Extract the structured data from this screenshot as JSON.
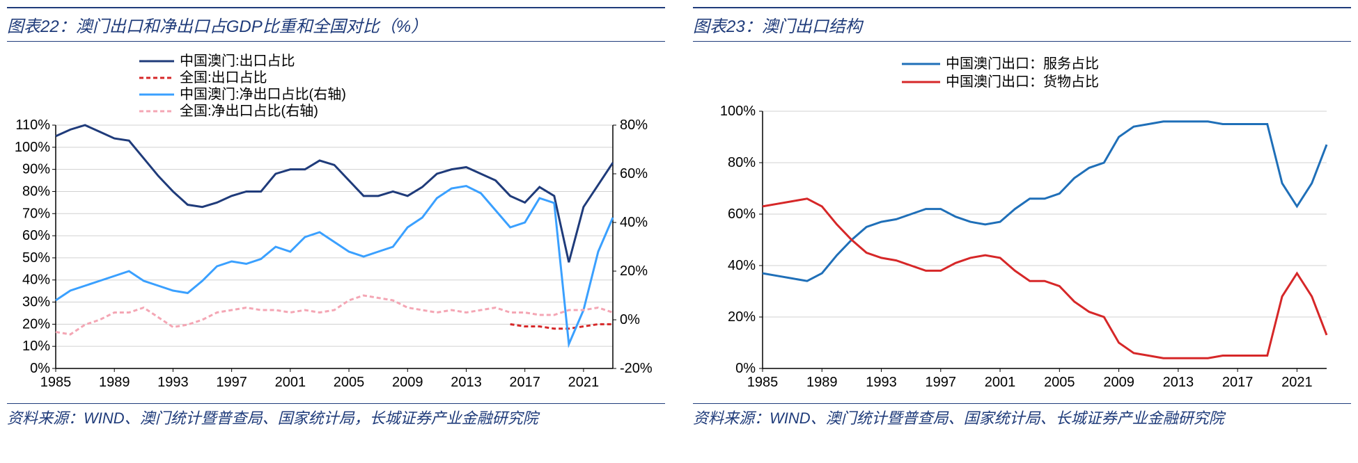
{
  "left": {
    "title": "图表22：澳门出口和净出口占GDP比重和全国对比（%）",
    "source": "资料来源：WIND、澳门统计暨普查局、国家统计局，长城证券产业金融研究院",
    "chart": {
      "type": "line-dual-axis",
      "background_color": "#ffffff",
      "grid_color": "#d0d0d0",
      "label_fontsize": 20,
      "x": {
        "ticks": [
          1985,
          1989,
          1993,
          1997,
          2001,
          2005,
          2009,
          2013,
          2017,
          2021
        ],
        "min": 1985,
        "max": 2023
      },
      "yLeft": {
        "min": 0,
        "max": 110,
        "step": 10,
        "suffix": "%"
      },
      "yRight": {
        "min": -20,
        "max": 80,
        "step": 20,
        "suffix": "%"
      },
      "legend": [
        {
          "label": "中国澳门:出口占比",
          "color": "#1f3b7a",
          "dash": "",
          "width": 3,
          "axis": "left",
          "key": "macao_export"
        },
        {
          "label": "全国:出口占比",
          "color": "#d62728",
          "dash": "6,4",
          "width": 3,
          "axis": "left",
          "key": "china_export"
        },
        {
          "label": "中国澳门:净出口占比(右轴)",
          "color": "#3aa0ff",
          "dash": "",
          "width": 3,
          "axis": "right",
          "key": "macao_net"
        },
        {
          "label": "全国:净出口占比(右轴)",
          "color": "#f4a6b4",
          "dash": "6,4",
          "width": 3,
          "axis": "right",
          "key": "china_net"
        }
      ],
      "series": {
        "years": [
          1985,
          1986,
          1987,
          1988,
          1989,
          1990,
          1991,
          1992,
          1993,
          1994,
          1995,
          1996,
          1997,
          1998,
          1999,
          2000,
          2001,
          2002,
          2003,
          2004,
          2005,
          2006,
          2007,
          2008,
          2009,
          2010,
          2011,
          2012,
          2013,
          2014,
          2015,
          2016,
          2017,
          2018,
          2019,
          2020,
          2021,
          2022,
          2023
        ],
        "macao_export": [
          105,
          108,
          110,
          107,
          104,
          103,
          95,
          87,
          80,
          74,
          73,
          75,
          78,
          80,
          80,
          88,
          90,
          90,
          94,
          92,
          85,
          78,
          78,
          80,
          78,
          82,
          88,
          90,
          91,
          88,
          85,
          78,
          75,
          82,
          78,
          48,
          73,
          83,
          93
        ],
        "china_export": [
          null,
          null,
          null,
          null,
          null,
          null,
          null,
          null,
          null,
          null,
          null,
          null,
          null,
          null,
          null,
          null,
          null,
          null,
          null,
          null,
          null,
          null,
          null,
          null,
          null,
          null,
          null,
          null,
          null,
          null,
          null,
          20,
          19,
          19,
          18,
          18,
          19,
          20,
          20
        ],
        "macao_net": [
          8,
          12,
          14,
          16,
          18,
          20,
          16,
          14,
          12,
          11,
          16,
          22,
          24,
          23,
          25,
          30,
          28,
          34,
          36,
          32,
          28,
          26,
          28,
          30,
          38,
          42,
          50,
          54,
          55,
          52,
          45,
          38,
          40,
          50,
          48,
          -10,
          4,
          28,
          42
        ],
        "china_net": [
          -5,
          -6,
          -2,
          0,
          3,
          3,
          5,
          1,
          -3,
          -2,
          0,
          3,
          4,
          5,
          4,
          4,
          3,
          4,
          3,
          4,
          8,
          10,
          9,
          8,
          5,
          4,
          3,
          4,
          3,
          4,
          5,
          3,
          3,
          2,
          2,
          4,
          4,
          5,
          3
        ]
      }
    }
  },
  "right": {
    "title": "图表23：澳门出口结构",
    "source": "资料来源：WIND、澳门统计暨普查局、国家统计局、长城证券产业金融研究院",
    "chart": {
      "type": "line",
      "background_color": "#ffffff",
      "grid_color": "#d0d0d0",
      "label_fontsize": 20,
      "x": {
        "ticks": [
          1985,
          1989,
          1993,
          1997,
          2001,
          2005,
          2009,
          2013,
          2017,
          2021
        ],
        "min": 1985,
        "max": 2023
      },
      "y": {
        "min": 0,
        "max": 100,
        "step": 20,
        "suffix": "%"
      },
      "legend": [
        {
          "label": "中国澳门出口：服务占比",
          "color": "#1f6fb8",
          "dash": "",
          "width": 3,
          "key": "services"
        },
        {
          "label": "中国澳门出口：货物占比",
          "color": "#d62728",
          "dash": "",
          "width": 3,
          "key": "goods"
        }
      ],
      "series": {
        "years": [
          1985,
          1986,
          1987,
          1988,
          1989,
          1990,
          1991,
          1992,
          1993,
          1994,
          1995,
          1996,
          1997,
          1998,
          1999,
          2000,
          2001,
          2002,
          2003,
          2004,
          2005,
          2006,
          2007,
          2008,
          2009,
          2010,
          2011,
          2012,
          2013,
          2014,
          2015,
          2016,
          2017,
          2018,
          2019,
          2020,
          2021,
          2022,
          2023
        ],
        "services": [
          37,
          36,
          35,
          34,
          37,
          44,
          50,
          55,
          57,
          58,
          60,
          62,
          62,
          59,
          57,
          56,
          57,
          62,
          66,
          66,
          68,
          74,
          78,
          80,
          90,
          94,
          95,
          96,
          96,
          96,
          96,
          95,
          95,
          95,
          95,
          72,
          63,
          72,
          87
        ],
        "goods": [
          63,
          64,
          65,
          66,
          63,
          56,
          50,
          45,
          43,
          42,
          40,
          38,
          38,
          41,
          43,
          44,
          43,
          38,
          34,
          34,
          32,
          26,
          22,
          20,
          10,
          6,
          5,
          4,
          4,
          4,
          4,
          5,
          5,
          5,
          5,
          28,
          37,
          28,
          13
        ]
      }
    }
  }
}
